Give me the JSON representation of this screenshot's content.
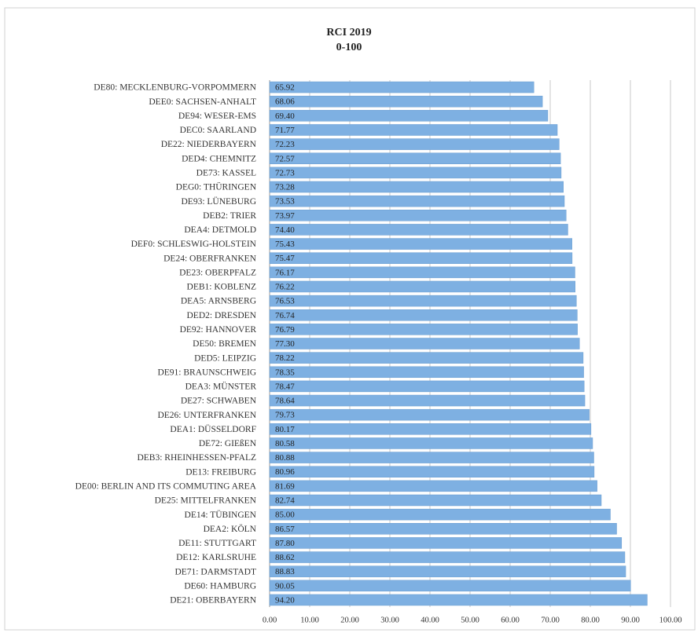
{
  "chart_data": {
    "type": "bar",
    "title": "RCI 2019",
    "subtitle": "0-100",
    "categories": [
      "DE80: MECKLENBURG-VORPOMMERN",
      "DEE0: SACHSEN-ANHALT",
      "DE94: WESER-EMS",
      "DEC0: SAARLAND",
      "DE22: NIEDERBAYERN",
      "DED4: CHEMNITZ",
      "DE73: KASSEL",
      "DEG0: THÜRINGEN",
      "DE93: LÜNEBURG",
      "DEB2: TRIER",
      "DEA4: DETMOLD",
      "DEF0: SCHLESWIG-HOLSTEIN",
      "DE24: OBERFRANKEN",
      "DE23: OBERPFALZ",
      "DEB1: KOBLENZ",
      "DEA5: ARNSBERG",
      "DED2: DRESDEN",
      "DE92: HANNOVER",
      "DE50: BREMEN",
      "DED5: LEIPZIG",
      "DE91: BRAUNSCHWEIG",
      "DEA3: MÜNSTER",
      "DE27: SCHWABEN",
      "DE26: UNTERFRANKEN",
      "DEA1: DÜSSELDORF",
      "DE72: GIEßEN",
      "DEB3: RHEINHESSEN-PFALZ",
      "DE13: FREIBURG",
      "DE00: BERLIN AND ITS COMMUTING AREA",
      "DE25: MITTELFRANKEN",
      "DE14: TÜBINGEN",
      "DEA2: KÖLN",
      "DE11: STUTTGART",
      "DE12: KARLSRUHE",
      "DE71: DARMSTADT",
      "DE60: HAMBURG",
      "DE21: OBERBAYERN"
    ],
    "values": [
      65.92,
      68.06,
      69.4,
      71.77,
      72.23,
      72.57,
      72.73,
      73.28,
      73.53,
      73.97,
      74.4,
      75.43,
      75.47,
      76.17,
      76.22,
      76.53,
      76.74,
      76.79,
      77.3,
      78.22,
      78.35,
      78.47,
      78.64,
      79.73,
      80.17,
      80.58,
      80.88,
      80.96,
      81.69,
      82.74,
      85.0,
      86.57,
      87.8,
      88.62,
      88.83,
      90.05,
      94.2
    ],
    "value_labels": [
      "65.92",
      "68.06",
      "69.40",
      "71.77",
      "72.23",
      "72.57",
      "72.73",
      "73.28",
      "73.53",
      "73.97",
      "74.40",
      "75.43",
      "75.47",
      "76.17",
      "76.22",
      "76.53",
      "76.74",
      "76.79",
      "77.30",
      "78.22",
      "78.35",
      "78.47",
      "78.64",
      "79.73",
      "80.17",
      "80.58",
      "80.88",
      "80.96",
      "81.69",
      "82.74",
      "85.00",
      "86.57",
      "87.80",
      "88.62",
      "88.83",
      "90.05",
      "94.20"
    ],
    "color": "#7eb0e2",
    "xlim": [
      0,
      100
    ],
    "xticks": [
      {
        "value": 0,
        "label": "0.00"
      },
      {
        "value": 10,
        "label": "10.00"
      },
      {
        "value": 20,
        "label": "20.00"
      },
      {
        "value": 30,
        "label": "30.00"
      },
      {
        "value": 40,
        "label": "40.00"
      },
      {
        "value": 50,
        "label": "50.00"
      },
      {
        "value": 60,
        "label": "60.00"
      },
      {
        "value": 70,
        "label": "70.00"
      },
      {
        "value": 80,
        "label": "80.00"
      },
      {
        "value": 90,
        "label": "90.00"
      },
      {
        "value": 100,
        "label": "100.00"
      }
    ],
    "grid": true
  }
}
